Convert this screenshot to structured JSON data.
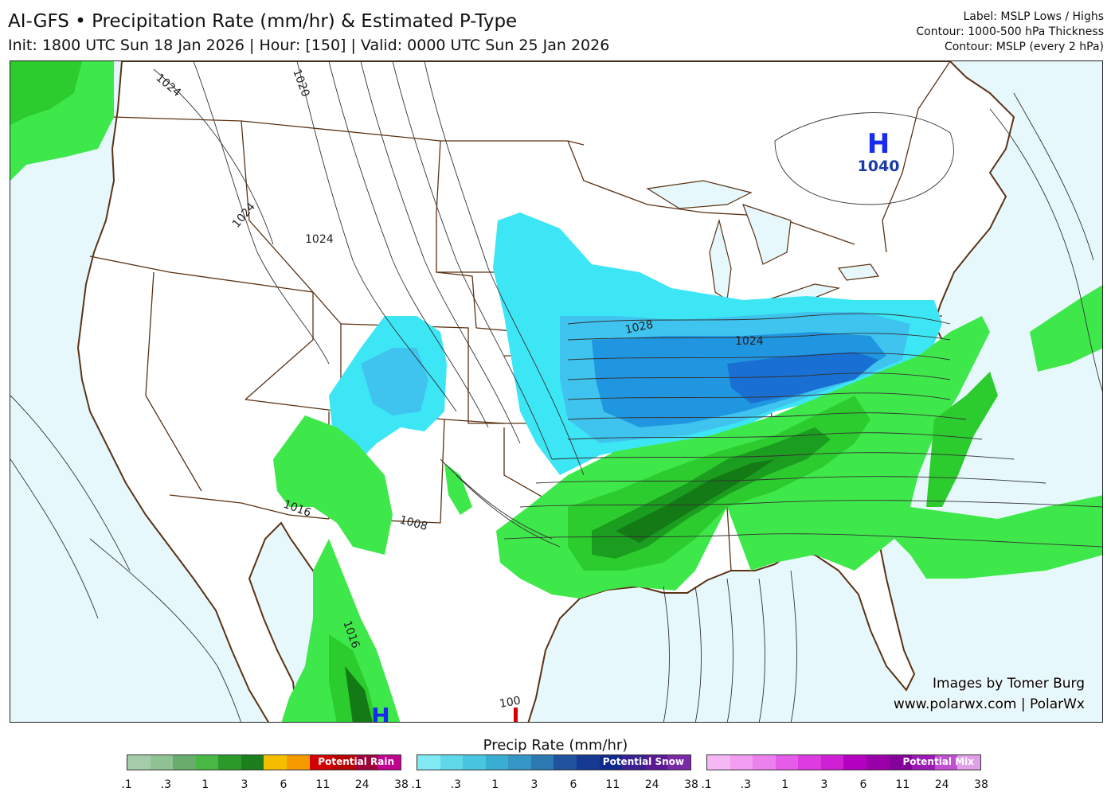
{
  "header": {
    "title": "AI-GFS • Precipitation Rate (mm/hr) & Estimated P-Type",
    "subtitle": "Init: 1800 UTC Sun 18 Jan 2026 | Hour: [150] | Valid: 0000 UTC Sun 25 Jan 2026",
    "meta_lines": [
      "Label: MSLP Lows / Highs",
      "Contour: 1000-500 hPa Thickness",
      "Contour: MSLP (every 2 hPa)"
    ]
  },
  "map": {
    "high_label": "H",
    "high_value": "1040",
    "contour_labels": [
      "1024",
      "1020",
      "1024",
      "1024",
      "1028",
      "1024",
      "1016",
      "1008",
      "1016",
      "100"
    ],
    "credit_line1": "Images by Tomer Burg",
    "credit_line2": "www.polarwx.com | PolarWx",
    "colors": {
      "ocean": "#e6f8fc",
      "land": "#ffffff",
      "border": "#5a3214",
      "contour": "#333333"
    }
  },
  "legend": {
    "title": "Precip Rate (mm/hr)",
    "bars": [
      {
        "label": "Potential Rain",
        "ticks": [
          ".1",
          ".3",
          "1",
          "3",
          "6",
          "11",
          "24",
          "38"
        ],
        "colors": [
          "#a5ccaa",
          "#8fc394",
          "#68ad6c",
          "#46b843",
          "#2a9a2a",
          "#1d7e1d",
          "#f5bf00",
          "#f59b00",
          "#d20000",
          "#b80000",
          "#a0003a",
          "#c20090"
        ]
      },
      {
        "label": "Potential Snow",
        "ticks": [
          ".1",
          ".3",
          "1",
          "3",
          "6",
          "11",
          "24",
          "38"
        ],
        "colors": [
          "#80eaf5",
          "#5fd8ea",
          "#48c6df",
          "#3aaed2",
          "#3595c4",
          "#2c78b0",
          "#20539e",
          "#163a94",
          "#0f2a8c",
          "#3a2090",
          "#5a1a94",
          "#7a2aa4"
        ]
      },
      {
        "label": "Potential Mix",
        "ticks": [
          ".1",
          ".3",
          "1",
          "3",
          "6",
          "11",
          "24",
          "38"
        ],
        "colors": [
          "#f5b8f5",
          "#f29cf2",
          "#ec80ec",
          "#e55ce8",
          "#dd3ae0",
          "#cf1fd5",
          "#b400c0",
          "#9a00a8",
          "#85009a",
          "#9c1ab4",
          "#c050d0",
          "#e0a0e8"
        ]
      }
    ]
  }
}
